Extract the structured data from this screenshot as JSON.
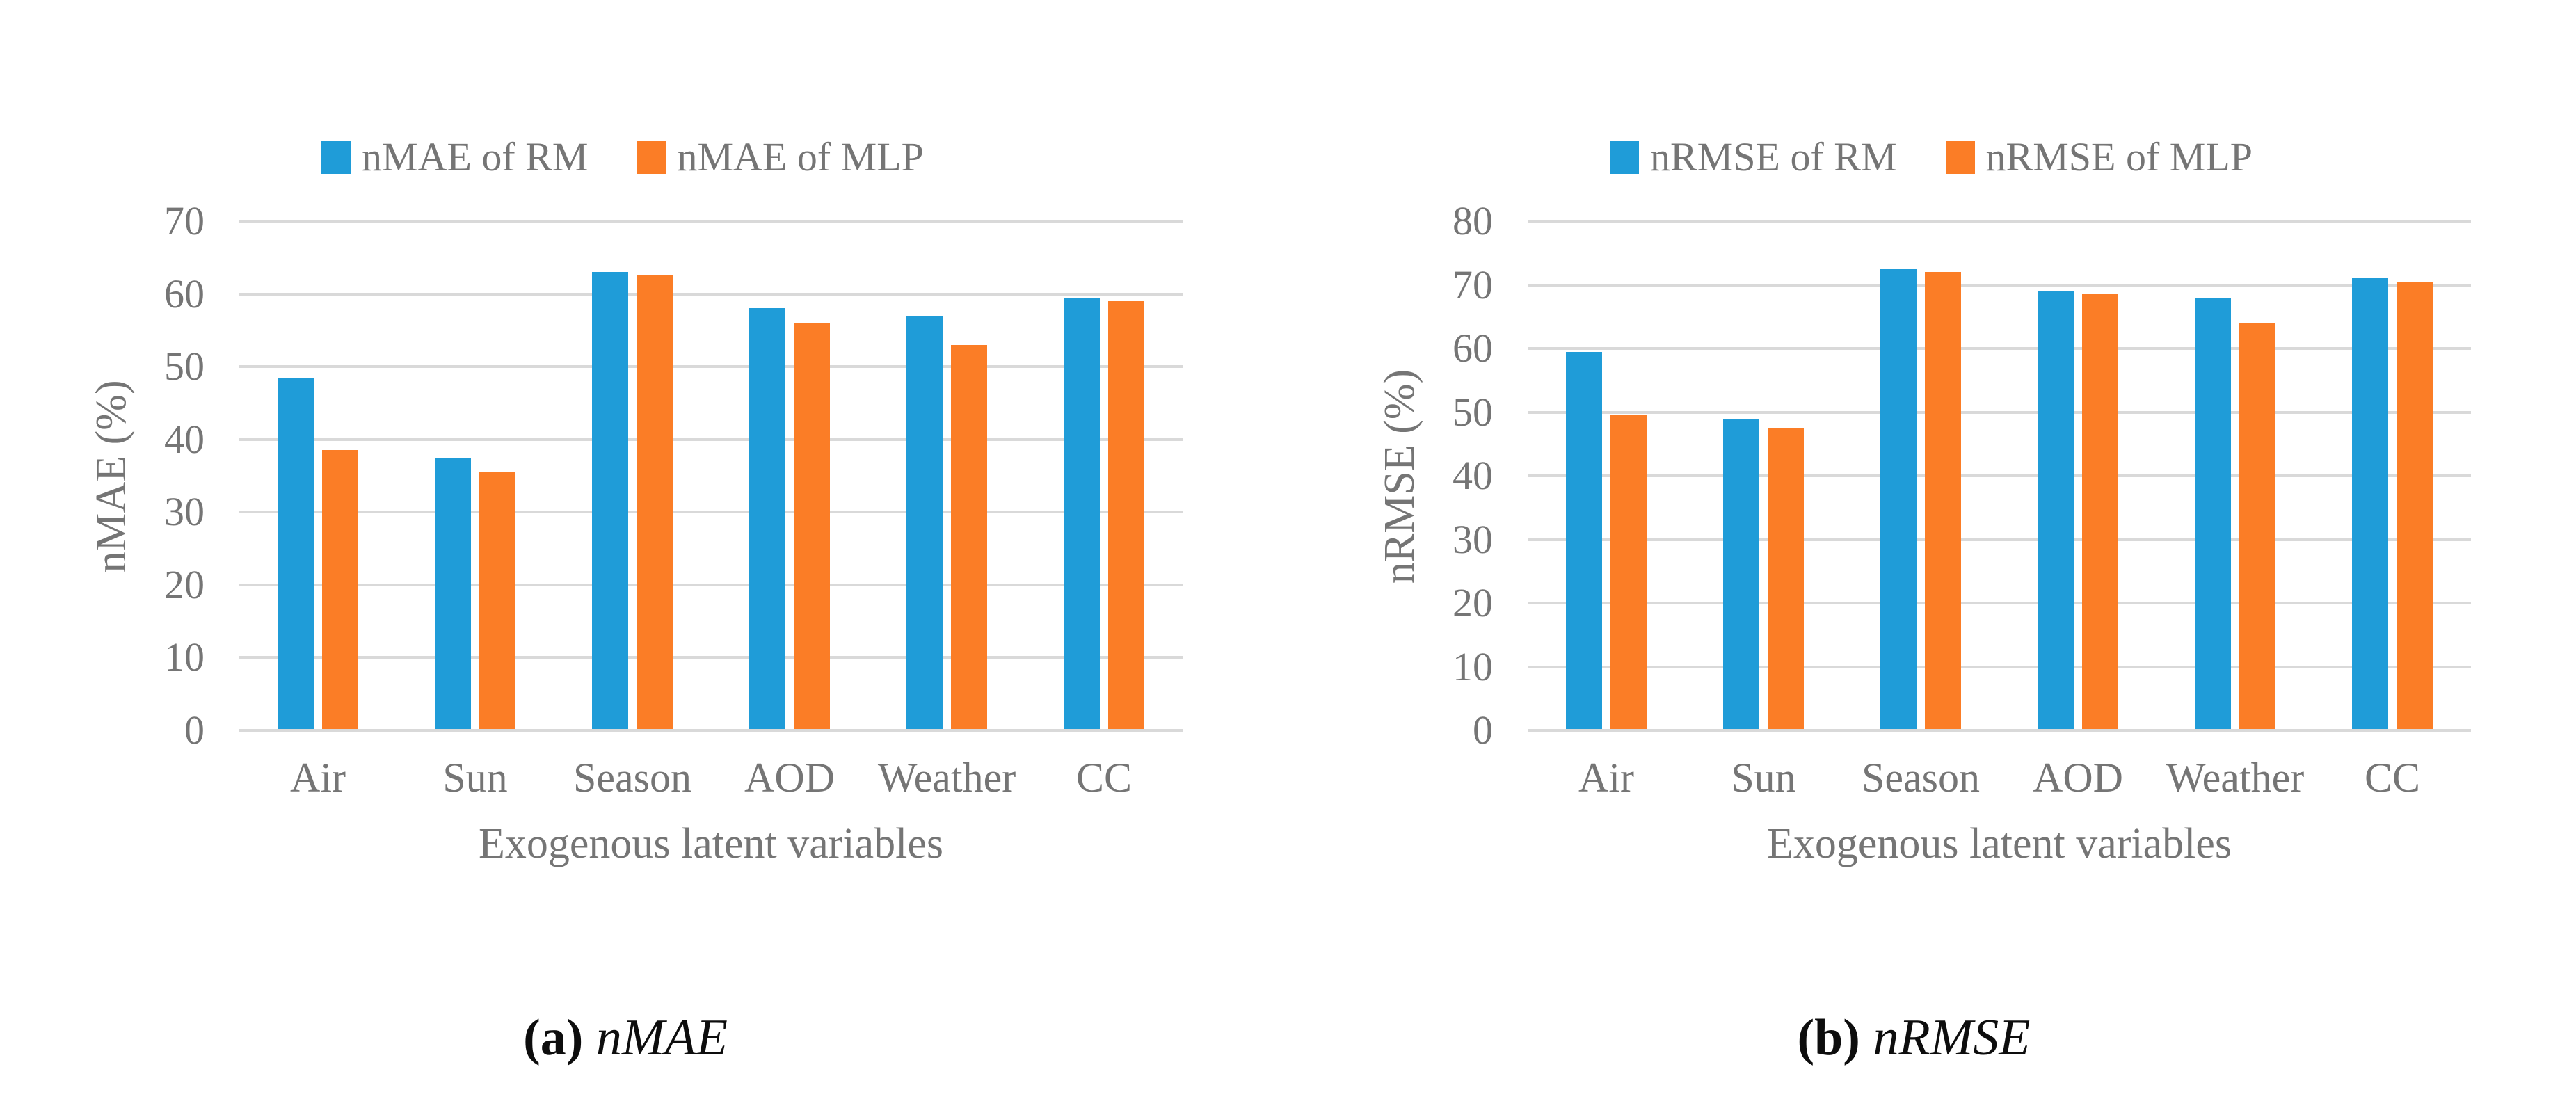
{
  "figure": {
    "background": "#ffffff",
    "text_color_axis": "#757575",
    "gridline_color": "#D9D9D9",
    "series_colors": {
      "rm_blue": "#1F9CD8",
      "mlp_orange": "#FB7D26"
    }
  },
  "chart_data": [
    {
      "id": "a",
      "type": "bar",
      "title": "",
      "categories": [
        "Air",
        "Sun",
        "Season",
        "AOD",
        "Weather",
        "CC"
      ],
      "series": [
        {
          "name": "nMAE of RM",
          "color": "#1F9CD8",
          "values": [
            48.5,
            37.5,
            63.0,
            58.0,
            57.0,
            59.5
          ]
        },
        {
          "name": "nMAE of MLP",
          "color": "#FB7D26",
          "values": [
            38.5,
            35.5,
            62.5,
            56.0,
            53.0,
            59.0
          ]
        }
      ],
      "xlabel": "Exogenous latent variables",
      "ylabel": "nMAE (%)",
      "ylim": [
        0,
        70
      ],
      "ytick_step": 10,
      "grid": true,
      "legend_position": "top",
      "caption": {
        "open": "(",
        "letter": "a",
        "close": ")",
        "metric": "nMAE"
      }
    },
    {
      "id": "b",
      "type": "bar",
      "title": "",
      "categories": [
        "Air",
        "Sun",
        "Season",
        "AOD",
        "Weather",
        "CC"
      ],
      "series": [
        {
          "name": "nRMSE of RM",
          "color": "#1F9CD8",
          "values": [
            59.5,
            49.0,
            72.5,
            69.0,
            68.0,
            71.0
          ]
        },
        {
          "name": "nRMSE of MLP",
          "color": "#FB7D26",
          "values": [
            49.5,
            47.5,
            72.0,
            68.5,
            64.0,
            70.5
          ]
        }
      ],
      "xlabel": "Exogenous latent variables",
      "ylabel": "nRMSE (%)",
      "ylim": [
        0,
        80
      ],
      "ytick_step": 10,
      "grid": true,
      "legend_position": "top",
      "caption": {
        "open": "(",
        "letter": "b",
        "close": ")",
        "metric": "nRMSE"
      }
    }
  ]
}
